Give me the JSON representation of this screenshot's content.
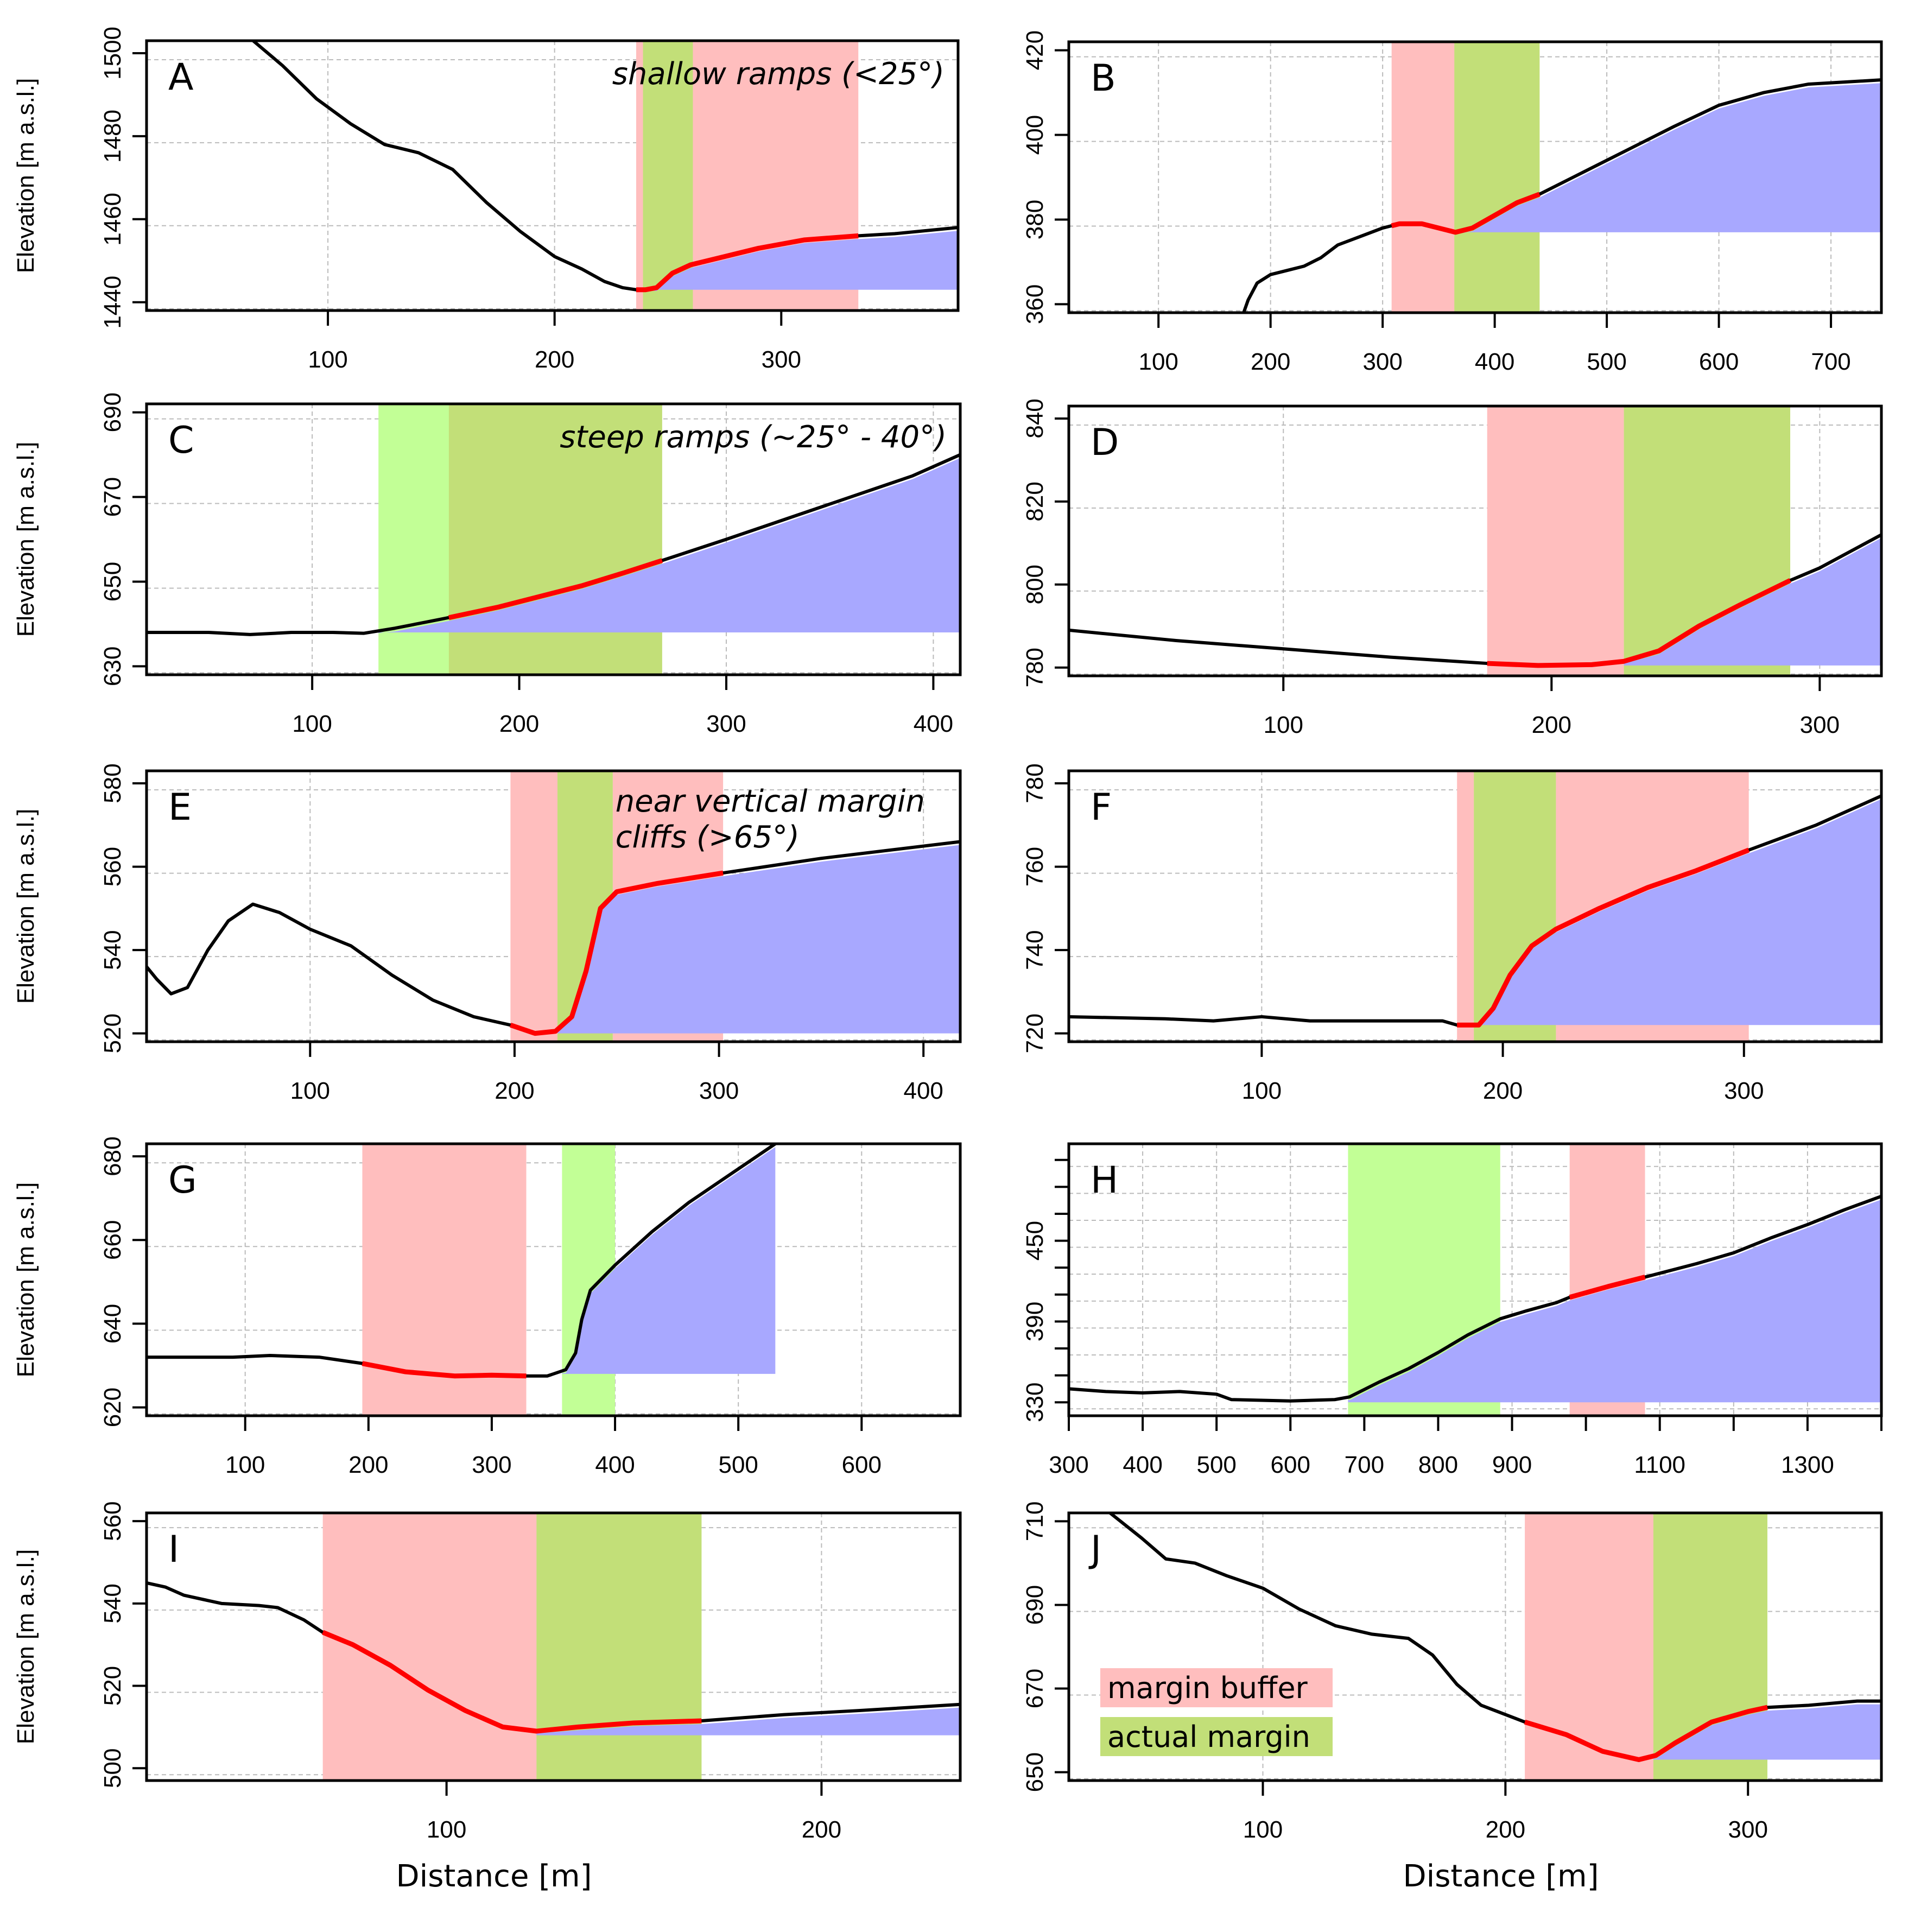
{
  "colors": {
    "margin_buffer": "#FFBEBE",
    "actual_margin": "#C2FF96",
    "overlap": "#C2DF78",
    "ice_fill": "#A8A8FF",
    "profile": "#000000",
    "highlight": "#FF0000",
    "grid": "#BBBBBB"
  },
  "y_axis_title": "Elevation [m a.s.l.]",
  "x_axis_title": "Distance [m]",
  "legend": [
    {
      "label": "margin buffer",
      "color": "#FFBEBE"
    },
    {
      "label": "actual margin",
      "color": "#C2DF78"
    }
  ],
  "chart_data": [
    {
      "id": "A",
      "type": "area",
      "letter": "A",
      "annotation": "shallow ramps (<25°)",
      "xlim": [
        20,
        378
      ],
      "ylim": [
        1438,
        1503
      ],
      "xticks": [
        100,
        200,
        300
      ],
      "yticks": [
        1440,
        1460,
        1480,
        1500
      ],
      "ytick_labels": [
        "1440",
        "1460",
        "1480",
        "1500"
      ],
      "show_ylabel": true,
      "show_xlabel": false,
      "buffer": [
        [
          236,
          334
        ]
      ],
      "margin": [
        [
          239,
          261
        ]
      ],
      "ice_base": 1443,
      "ice_from": 243,
      "highlight": [
        236,
        334
      ],
      "profile": [
        [
          67,
          1503
        ],
        [
          80,
          1497
        ],
        [
          95,
          1489
        ],
        [
          110,
          1483
        ],
        [
          125,
          1478
        ],
        [
          140,
          1476
        ],
        [
          155,
          1472
        ],
        [
          170,
          1464
        ],
        [
          185,
          1457
        ],
        [
          200,
          1451
        ],
        [
          212,
          1448
        ],
        [
          222,
          1445
        ],
        [
          230,
          1443.5
        ],
        [
          236,
          1443
        ],
        [
          240,
          1443
        ],
        [
          245,
          1443.5
        ],
        [
          252,
          1447
        ],
        [
          260,
          1449
        ],
        [
          275,
          1451
        ],
        [
          290,
          1453
        ],
        [
          310,
          1455
        ],
        [
          334,
          1456
        ],
        [
          350,
          1456.5
        ],
        [
          378,
          1458
        ]
      ]
    },
    {
      "id": "B",
      "type": "area",
      "letter": "B",
      "annotation": "",
      "xlim": [
        20,
        745
      ],
      "ylim": [
        358,
        422
      ],
      "xticks": [
        100,
        200,
        300,
        400,
        500,
        600,
        700
      ],
      "yticks": [
        360,
        380,
        400,
        420
      ],
      "ytick_labels": [
        "360",
        "380",
        "400",
        "420"
      ],
      "show_ylabel": false,
      "show_xlabel": false,
      "buffer": [
        [
          308,
          440
        ]
      ],
      "margin": [
        [
          364,
          440
        ]
      ],
      "ice_base": 377,
      "ice_from": 368,
      "highlight": [
        308,
        440
      ],
      "profile": [
        [
          176,
          358
        ],
        [
          180,
          361
        ],
        [
          188,
          365
        ],
        [
          200,
          367
        ],
        [
          215,
          368
        ],
        [
          230,
          369
        ],
        [
          245,
          371
        ],
        [
          260,
          374
        ],
        [
          280,
          376
        ],
        [
          300,
          378
        ],
        [
          315,
          379
        ],
        [
          335,
          379
        ],
        [
          350,
          378
        ],
        [
          365,
          377
        ],
        [
          380,
          378
        ],
        [
          400,
          381
        ],
        [
          420,
          384
        ],
        [
          440,
          386
        ],
        [
          470,
          390
        ],
        [
          500,
          394
        ],
        [
          530,
          398
        ],
        [
          560,
          402
        ],
        [
          600,
          407
        ],
        [
          640,
          410
        ],
        [
          680,
          412
        ],
        [
          745,
          413
        ]
      ]
    },
    {
      "id": "C",
      "type": "area",
      "letter": "C",
      "annotation": "steep ramps (~25° - 40°)",
      "xlim": [
        20,
        413
      ],
      "ylim": [
        628,
        692
      ],
      "xticks": [
        100,
        200,
        300,
        400
      ],
      "yticks": [
        630,
        650,
        670,
        690
      ],
      "ytick_labels": [
        "630",
        "650",
        "670",
        "690"
      ],
      "show_ylabel": true,
      "show_xlabel": false,
      "buffer": [
        [
          166,
          269
        ]
      ],
      "margin": [
        [
          132,
          269
        ]
      ],
      "ice_base": 638,
      "ice_from": 132,
      "highlight": [
        166,
        269
      ],
      "profile": [
        [
          20,
          638
        ],
        [
          50,
          638
        ],
        [
          70,
          637.5
        ],
        [
          90,
          638
        ],
        [
          110,
          638
        ],
        [
          125,
          637.8
        ],
        [
          140,
          639
        ],
        [
          166,
          641.5
        ],
        [
          190,
          644
        ],
        [
          210,
          646.5
        ],
        [
          230,
          649
        ],
        [
          250,
          652
        ],
        [
          269,
          655
        ],
        [
          300,
          660
        ],
        [
          330,
          665
        ],
        [
          360,
          670
        ],
        [
          390,
          675
        ],
        [
          413,
          680
        ]
      ]
    },
    {
      "id": "D",
      "type": "area",
      "letter": "D",
      "annotation": "",
      "xlim": [
        20,
        323
      ],
      "ylim": [
        778,
        843
      ],
      "xticks": [
        100,
        200,
        300
      ],
      "yticks": [
        780,
        800,
        820,
        840
      ],
      "ytick_labels": [
        "780",
        "800",
        "820",
        "840"
      ],
      "show_ylabel": false,
      "show_xlabel": false,
      "buffer": [
        [
          176,
          289
        ]
      ],
      "margin": [
        [
          227,
          289
        ]
      ],
      "ice_base": 780.5,
      "ice_from": 227,
      "highlight": [
        176,
        289
      ],
      "profile": [
        [
          20,
          789
        ],
        [
          60,
          786.5
        ],
        [
          100,
          784.5
        ],
        [
          140,
          782.5
        ],
        [
          176,
          781
        ],
        [
          195,
          780.5
        ],
        [
          215,
          780.7
        ],
        [
          227,
          781.5
        ],
        [
          240,
          784
        ],
        [
          255,
          790
        ],
        [
          270,
          795
        ],
        [
          289,
          801
        ],
        [
          300,
          804
        ],
        [
          323,
          812
        ]
      ]
    },
    {
      "id": "E",
      "type": "area",
      "letter": "E",
      "annotation": "near vertical margin\ncliffs (>65°)",
      "xlim": [
        20,
        418
      ],
      "ylim": [
        518,
        583
      ],
      "xticks": [
        100,
        200,
        300,
        400
      ],
      "yticks": [
        520,
        540,
        560,
        580
      ],
      "ytick_labels": [
        "520",
        "540",
        "560",
        "580"
      ],
      "show_ylabel": true,
      "show_xlabel": false,
      "buffer": [
        [
          198,
          302
        ]
      ],
      "margin": [
        [
          221,
          248
        ]
      ],
      "ice_base": 520,
      "ice_from": 221,
      "highlight": [
        198,
        302
      ],
      "profile": [
        [
          20,
          536
        ],
        [
          25,
          533
        ],
        [
          32,
          529.5
        ],
        [
          40,
          531
        ],
        [
          50,
          540
        ],
        [
          60,
          547
        ],
        [
          72,
          551
        ],
        [
          85,
          549
        ],
        [
          100,
          545
        ],
        [
          120,
          541
        ],
        [
          140,
          534
        ],
        [
          160,
          528
        ],
        [
          180,
          524
        ],
        [
          198,
          522
        ],
        [
          210,
          520
        ],
        [
          220,
          520.5
        ],
        [
          228,
          524
        ],
        [
          235,
          535
        ],
        [
          242,
          550
        ],
        [
          250,
          554
        ],
        [
          270,
          556
        ],
        [
          302,
          558.5
        ],
        [
          350,
          562
        ],
        [
          418,
          566
        ]
      ]
    },
    {
      "id": "F",
      "type": "area",
      "letter": "F",
      "annotation": "",
      "xlim": [
        20,
        357
      ],
      "ylim": [
        718,
        783
      ],
      "xticks": [
        100,
        200,
        300
      ],
      "yticks": [
        720,
        740,
        760,
        780
      ],
      "ytick_labels": [
        "720",
        "740",
        "760",
        "780"
      ],
      "show_ylabel": false,
      "show_xlabel": false,
      "buffer": [
        [
          181,
          302
        ]
      ],
      "margin": [
        [
          188,
          222
        ]
      ],
      "ice_base": 722,
      "ice_from": 190,
      "highlight": [
        181,
        302
      ],
      "profile": [
        [
          20,
          724
        ],
        [
          60,
          723.5
        ],
        [
          80,
          723
        ],
        [
          100,
          724
        ],
        [
          120,
          723
        ],
        [
          140,
          723
        ],
        [
          160,
          723
        ],
        [
          175,
          723
        ],
        [
          181,
          722
        ],
        [
          190,
          722
        ],
        [
          196,
          726
        ],
        [
          203,
          734
        ],
        [
          212,
          741
        ],
        [
          222,
          745
        ],
        [
          240,
          750
        ],
        [
          260,
          755
        ],
        [
          280,
          759
        ],
        [
          302,
          764
        ],
        [
          330,
          770
        ],
        [
          357,
          777
        ]
      ]
    },
    {
      "id": "G",
      "type": "area",
      "letter": "G",
      "annotation": "",
      "xlim": [
        20,
        680
      ],
      "ylim": [
        618,
        683
      ],
      "xticks": [
        100,
        200,
        300,
        400,
        500,
        600
      ],
      "yticks": [
        620,
        640,
        660,
        680
      ],
      "ytick_labels": [
        "620",
        "640",
        "660",
        "680"
      ],
      "show_ylabel": true,
      "show_xlabel": false,
      "buffer": [
        [
          195,
          328
        ]
      ],
      "margin": [
        [
          357,
          400
        ]
      ],
      "ice_base": 628,
      "ice_from": 357,
      "highlight": [
        195,
        328
      ],
      "profile": [
        [
          20,
          632
        ],
        [
          90,
          632
        ],
        [
          120,
          632.4
        ],
        [
          160,
          632
        ],
        [
          195,
          630.5
        ],
        [
          230,
          628.5
        ],
        [
          270,
          627.5
        ],
        [
          300,
          627.7
        ],
        [
          328,
          627.5
        ],
        [
          345,
          627.5
        ],
        [
          360,
          629
        ],
        [
          368,
          633
        ],
        [
          373,
          641
        ],
        [
          380,
          648
        ],
        [
          400,
          654
        ],
        [
          430,
          662
        ],
        [
          460,
          669
        ],
        [
          500,
          677
        ],
        [
          530,
          683
        ]
      ]
    },
    {
      "id": "H",
      "type": "area",
      "letter": "H",
      "annotation": "",
      "xlim": [
        300,
        1400
      ],
      "ylim": [
        320,
        522
      ],
      "xticks": [
        300,
        400,
        500,
        600,
        700,
        800,
        900,
        1000,
        1100,
        1200,
        1300,
        1400
      ],
      "xtick_labels": [
        "300",
        "400",
        "500",
        "600",
        "700",
        "800",
        "900",
        "",
        "1100",
        "",
        "1300",
        ""
      ],
      "yticks": [
        330,
        350,
        370,
        390,
        410,
        430,
        450,
        470,
        490,
        510
      ],
      "ytick_labels": [
        "330",
        "",
        "",
        "390",
        "",
        "",
        "450",
        "",
        "",
        ""
      ],
      "show_ylabel": false,
      "show_xlabel": false,
      "buffer": [
        [
          978,
          1080
        ]
      ],
      "margin": [
        [
          678,
          884
        ]
      ],
      "ice_base": 330,
      "ice_from": 678,
      "highlight": [
        978,
        1080
      ],
      "profile": [
        [
          300,
          340
        ],
        [
          350,
          338
        ],
        [
          400,
          337
        ],
        [
          450,
          338
        ],
        [
          500,
          336
        ],
        [
          520,
          332
        ],
        [
          600,
          331
        ],
        [
          660,
          332
        ],
        [
          680,
          334
        ],
        [
          720,
          345
        ],
        [
          760,
          355
        ],
        [
          800,
          367
        ],
        [
          840,
          380
        ],
        [
          884,
          392
        ],
        [
          920,
          398
        ],
        [
          960,
          404
        ],
        [
          978,
          408
        ],
        [
          1030,
          416
        ],
        [
          1080,
          423
        ],
        [
          1150,
          433
        ],
        [
          1200,
          441
        ],
        [
          1250,
          452
        ],
        [
          1300,
          462
        ],
        [
          1350,
          473
        ],
        [
          1400,
          483
        ]
      ]
    },
    {
      "id": "I",
      "type": "area",
      "letter": "I",
      "annotation": "",
      "xlim": [
        20,
        237
      ],
      "ylim": [
        497,
        562
      ],
      "xticks": [
        100,
        200
      ],
      "yticks": [
        500,
        520,
        540,
        560
      ],
      "ytick_labels": [
        "500",
        "520",
        "540",
        "560"
      ],
      "show_ylabel": true,
      "show_xlabel": true,
      "buffer": [
        [
          67,
          168
        ]
      ],
      "margin": [
        [
          124,
          168
        ]
      ],
      "ice_base": 508,
      "ice_from": 124,
      "highlight": [
        67,
        168
      ],
      "profile": [
        [
          20,
          545
        ],
        [
          25,
          544
        ],
        [
          30,
          542
        ],
        [
          40,
          540
        ],
        [
          50,
          539.5
        ],
        [
          55,
          539
        ],
        [
          62,
          536
        ],
        [
          67,
          533
        ],
        [
          75,
          530
        ],
        [
          85,
          525
        ],
        [
          95,
          519
        ],
        [
          105,
          514
        ],
        [
          115,
          510
        ],
        [
          124,
          509
        ],
        [
          135,
          510
        ],
        [
          150,
          511
        ],
        [
          168,
          511.5
        ],
        [
          190,
          513
        ],
        [
          210,
          514
        ],
        [
          237,
          515.5
        ]
      ]
    },
    {
      "id": "J",
      "type": "area",
      "letter": "J",
      "annotation": "",
      "xlim": [
        20,
        355
      ],
      "ylim": [
        648,
        712
      ],
      "xticks": [
        100,
        200,
        300
      ],
      "yticks": [
        650,
        670,
        690,
        710
      ],
      "ytick_labels": [
        "650",
        "670",
        "690",
        "710"
      ],
      "show_ylabel": false,
      "show_xlabel": true,
      "buffer": [
        [
          208,
          308
        ]
      ],
      "margin": [
        [
          261,
          308
        ]
      ],
      "ice_base": 653,
      "ice_from": 261,
      "highlight": [
        208,
        308
      ],
      "profile": [
        [
          37,
          712
        ],
        [
          50,
          706
        ],
        [
          60,
          701
        ],
        [
          72,
          700
        ],
        [
          85,
          697
        ],
        [
          100,
          694
        ],
        [
          115,
          689
        ],
        [
          130,
          685
        ],
        [
          145,
          683
        ],
        [
          160,
          682
        ],
        [
          170,
          678
        ],
        [
          180,
          671
        ],
        [
          190,
          666
        ],
        [
          208,
          662
        ],
        [
          225,
          659
        ],
        [
          240,
          655
        ],
        [
          255,
          653
        ],
        [
          262,
          654
        ],
        [
          270,
          657
        ],
        [
          285,
          662
        ],
        [
          300,
          664.5
        ],
        [
          308,
          665.5
        ],
        [
          325,
          666
        ],
        [
          345,
          667
        ],
        [
          355,
          667
        ]
      ]
    }
  ]
}
